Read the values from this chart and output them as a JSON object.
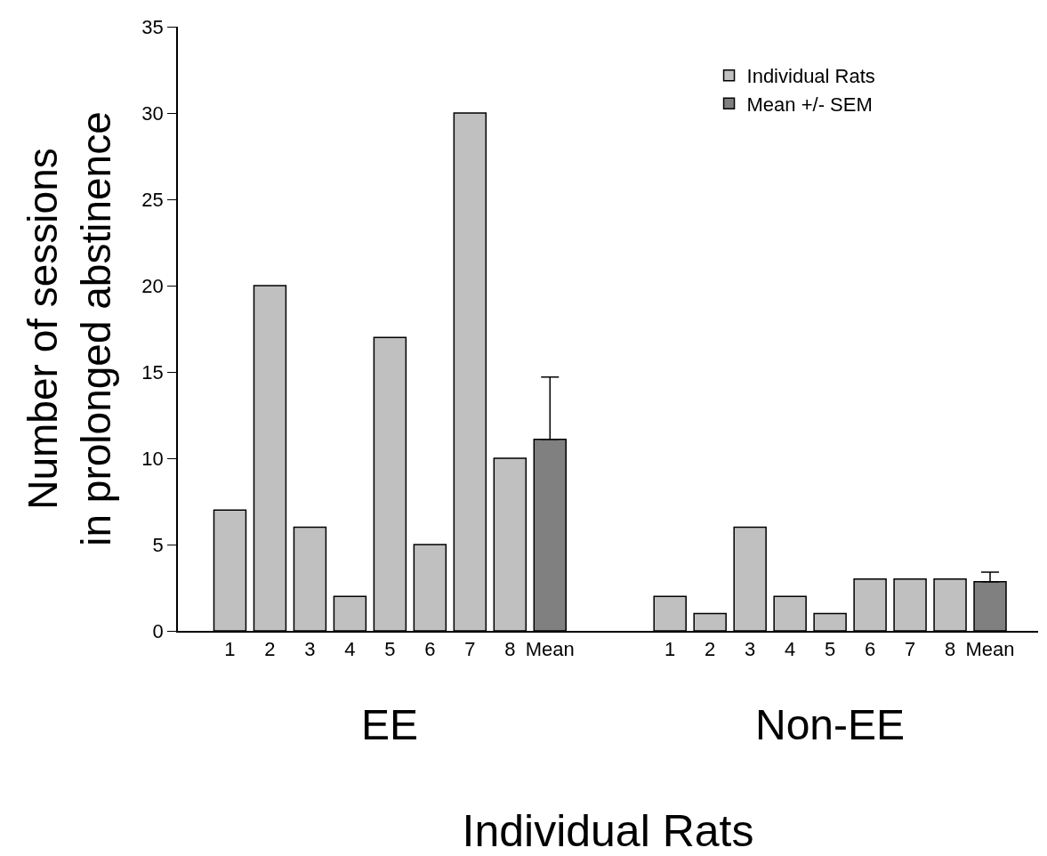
{
  "chart_data": {
    "type": "bar",
    "xlabel": "Individual Rats",
    "ylabel": "Number of sessions\nin prolonged abstinence",
    "categories": [
      "1",
      "2",
      "3",
      "4",
      "5",
      "6",
      "7",
      "8",
      "Mean",
      null,
      null,
      "1",
      "2",
      "3",
      "4",
      "5",
      "6",
      "7",
      "8",
      "Mean"
    ],
    "series": [
      {
        "name": "Individual Rats",
        "color": "#c0c0c0",
        "values": [
          7,
          20,
          6,
          2,
          17,
          5,
          30,
          10,
          null,
          null,
          null,
          2,
          1,
          6,
          2,
          1,
          3,
          3,
          3,
          null
        ]
      },
      {
        "name": "Mean +/- SEM",
        "color": "#808080",
        "values": [
          null,
          null,
          null,
          null,
          null,
          null,
          null,
          null,
          11.1,
          null,
          null,
          null,
          null,
          null,
          null,
          null,
          null,
          null,
          null,
          2.85
        ],
        "errors": [
          null,
          null,
          null,
          null,
          null,
          null,
          null,
          null,
          [
            11.1,
            14.7
          ],
          null,
          null,
          null,
          null,
          null,
          null,
          null,
          null,
          null,
          null,
          [
            2.85,
            3.4
          ]
        ]
      }
    ],
    "annotations": [
      "EE",
      "Non-EE"
    ],
    "ylim": [
      0,
      35
    ],
    "yticks": [
      0,
      5,
      10,
      15,
      20,
      25,
      30,
      35
    ],
    "legend": "top right"
  }
}
